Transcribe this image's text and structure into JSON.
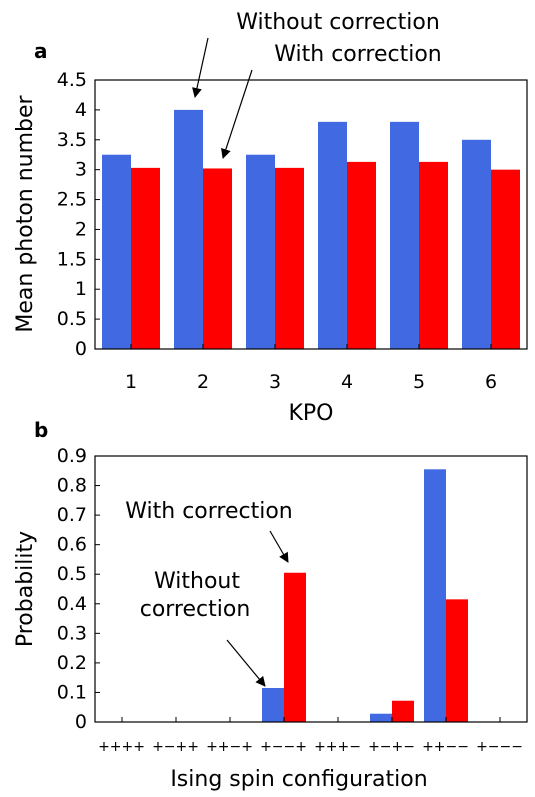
{
  "colors": {
    "without": "#4169e1",
    "with": "#ff0000"
  },
  "chart_data": [
    {
      "type": "bar",
      "panel": "a",
      "categories": [
        "1",
        "2",
        "3",
        "4",
        "5",
        "6"
      ],
      "series": [
        {
          "name": "Without correction",
          "values": [
            3.25,
            4.0,
            3.25,
            3.8,
            3.8,
            3.5
          ]
        },
        {
          "name": "With correction",
          "values": [
            3.03,
            3.02,
            3.03,
            3.13,
            3.13,
            3.0
          ]
        }
      ],
      "xlabel": "KPO",
      "ylabel": "Mean photon number",
      "ylim": [
        0,
        4.5
      ],
      "yticks": [
        "0",
        "0.5",
        "1",
        "1.5",
        "2",
        "2.5",
        "3",
        "3.5",
        "4",
        "4.5"
      ],
      "annotations": [
        "Without correction",
        "With correction"
      ]
    },
    {
      "type": "bar",
      "panel": "b",
      "categories": [
        "++++",
        "+−++",
        "++−+",
        "+−−+",
        "+++−",
        "+−+−",
        "++−−",
        "+−−−"
      ],
      "series": [
        {
          "name": "Without correction",
          "values": [
            0,
            0,
            0,
            0.115,
            0,
            0.028,
            0.855,
            0
          ]
        },
        {
          "name": "With correction",
          "values": [
            0,
            0,
            0,
            0.505,
            0,
            0.072,
            0.415,
            0
          ]
        }
      ],
      "xlabel": "Ising spin configuration",
      "ylabel": "Probability",
      "ylim": [
        0,
        0.9
      ],
      "yticks": [
        "0",
        "0.1",
        "0.2",
        "0.3",
        "0.4",
        "0.5",
        "0.6",
        "0.7",
        "0.8",
        "0.9"
      ],
      "annotations": [
        "With correction",
        "Without",
        "correction"
      ]
    }
  ]
}
